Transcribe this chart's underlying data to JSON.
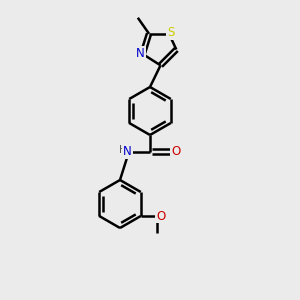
{
  "background_color": "#ebebeb",
  "atom_colors": {
    "C": "#000000",
    "N": "#0000cc",
    "O": "#cc0000",
    "S": "#cccc00",
    "H": "#000000"
  },
  "bond_color": "#000000",
  "bond_width": 1.8,
  "figsize": [
    3.0,
    3.0
  ],
  "dpi": 100,
  "xlim": [
    0,
    10
  ],
  "ylim": [
    0,
    10
  ]
}
